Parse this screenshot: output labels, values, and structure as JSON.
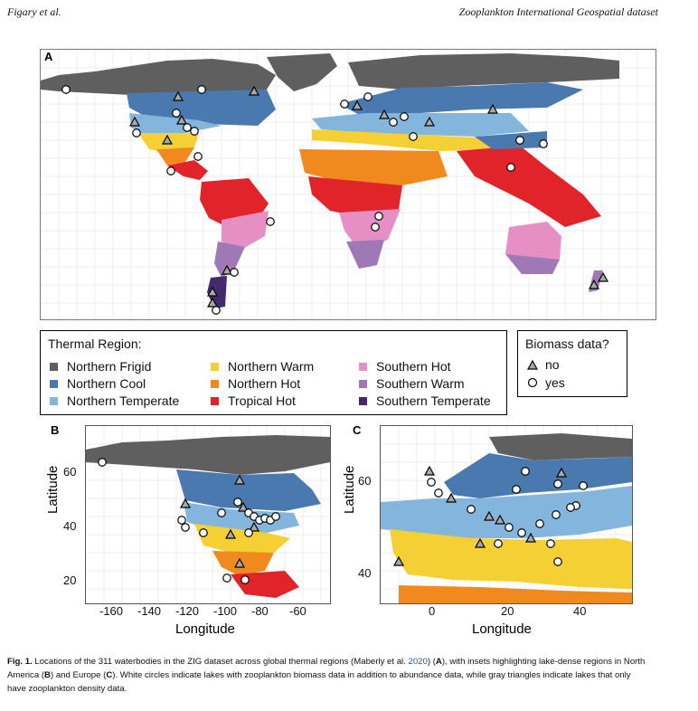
{
  "header": {
    "left": "Figary et al.",
    "right": "Zooplankton International Geospatial dataset"
  },
  "panels": {
    "a": "A",
    "b": "B",
    "c": "C"
  },
  "thermal_legend": {
    "title": "Thermal Region:",
    "items": [
      {
        "label": "Northern Frigid",
        "color": "#5f5f5f"
      },
      {
        "label": "Northern Cool",
        "color": "#4a79b0"
      },
      {
        "label": "Northern Temperate",
        "color": "#84b5dc"
      },
      {
        "label": "Northern Warm",
        "color": "#f5d034"
      },
      {
        "label": "Northern Hot",
        "color": "#f18a1e"
      },
      {
        "label": "Tropical Hot",
        "color": "#e0242a"
      },
      {
        "label": "Southern Hot",
        "color": "#e58fc5"
      },
      {
        "label": "Southern Warm",
        "color": "#9f79b5"
      },
      {
        "label": "Southern Temperate",
        "color": "#432a6c"
      }
    ]
  },
  "biomass_legend": {
    "title": "Biomass data?",
    "no_label": "no",
    "yes_label": "yes",
    "no_color": "#a8a8a8",
    "yes_color": "#ffffff"
  },
  "panel_b": {
    "x_title": "Longitude",
    "y_title": "Latitude",
    "x_ticks": [
      "-160",
      "-140",
      "-120",
      "-100",
      "-80",
      "-60"
    ],
    "y_ticks": [
      "60",
      "40",
      "20"
    ]
  },
  "panel_c": {
    "x_title": "Longitude",
    "y_title": "Latitude",
    "x_ticks": [
      "0",
      "20",
      "40"
    ],
    "y_ticks": [
      "60",
      "40"
    ]
  },
  "caption": {
    "fig_label": "Fig. 1.",
    "part1": " Locations of the 311 waterbodies in the ZIG dataset across global thermal regions (Maberly et al. ",
    "year": "2020",
    "part2": ") (",
    "a": "A",
    "part3": "), with insets highlighting lake-dense regions in North America (",
    "b": "B",
    "part4": ") and Europe (",
    "c": "C",
    "part5": "). White circles indicate lakes with zooplankton biomass data in addition to abundance data, while gray triangles indicate lakes that only have zooplankton density data."
  }
}
